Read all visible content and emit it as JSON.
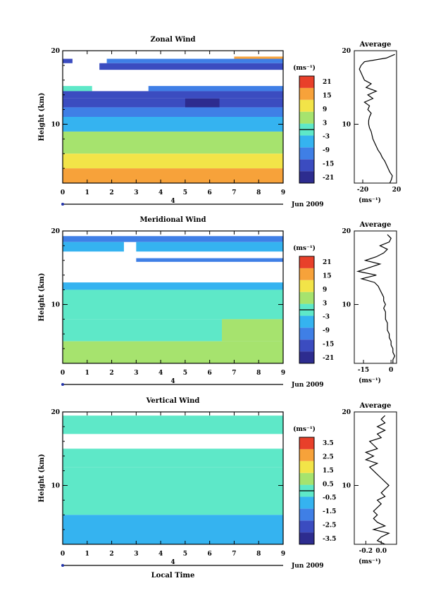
{
  "chart_data": [
    {
      "type": "heatmap",
      "title": "Zonal Wind",
      "ylabel": "Height (km)",
      "xlim": [
        0,
        9
      ],
      "ylim": [
        2,
        20
      ],
      "x_ticks": [
        "0",
        "1",
        "2",
        "3",
        "4",
        "5",
        "6",
        "7",
        "8",
        "9"
      ],
      "y_ticks": [
        {
          "v": 20,
          "t": "20"
        },
        {
          "v": 10,
          "t": "10"
        }
      ],
      "day_marker": "4",
      "date_label": "Jun 2009",
      "colorbar": {
        "unit": "(ms⁻¹)",
        "ticks": [
          "21",
          "15",
          "9",
          "3",
          "-3",
          "-9",
          "-15",
          "-21"
        ],
        "range": [
          -24,
          24
        ]
      },
      "profile": {
        "title": "Average",
        "xlabel": "(ms⁻¹)",
        "xlim": [
          -30,
          20
        ],
        "x_ticks": [
          {
            "v": -20,
            "t": "-20"
          },
          {
            "v": 20,
            "t": "20"
          }
        ],
        "y_ticks": [
          {
            "v": 20,
            "t": "20"
          },
          {
            "v": 10,
            "t": "10"
          }
        ],
        "h": [
          2,
          2.5,
          3,
          3.5,
          4,
          4.5,
          5,
          5.5,
          6,
          6.5,
          7,
          7.5,
          8,
          8.5,
          9,
          9.5,
          10,
          10.5,
          11,
          11.5,
          12,
          12.5,
          13,
          13.5,
          14,
          14.5,
          15,
          15.5,
          16,
          16.5,
          17,
          17.5,
          18,
          18.5,
          19,
          19.5
        ],
        "v": [
          12,
          14,
          15,
          12,
          10,
          8,
          6,
          3,
          1,
          -2,
          -4,
          -6,
          -8,
          -9,
          -10,
          -12,
          -13,
          -13,
          -12,
          -10,
          -14,
          -12,
          -18,
          -8,
          -14,
          -4,
          -16,
          -10,
          -18,
          -20,
          -22,
          -24,
          -22,
          -18,
          8,
          18
        ]
      },
      "grid": {
        "levels": [
          -24,
          -18,
          -12,
          -6,
          0,
          6,
          12,
          18,
          24
        ],
        "rows": [
          {
            "y": [
              18.9,
              19.2
            ],
            "v": [
              [
                7.0,
                9.0,
                18
              ]
            ]
          },
          {
            "y": [
              18.3,
              18.9
            ],
            "v": [
              [
                0,
                0.4,
                -18
              ],
              [
                1.8,
                9.0,
                -12
              ]
            ]
          },
          {
            "y": [
              17.4,
              18.3
            ],
            "v": [
              [
                1.5,
                9.0,
                -18
              ]
            ]
          },
          {
            "y": [
              14.5,
              15.2
            ],
            "v": [
              [
                0,
                1.2,
                0
              ],
              [
                3.5,
                9.0,
                -12
              ]
            ]
          },
          {
            "y": [
              13.5,
              14.5
            ],
            "v": [
              [
                0,
                9.0,
                -18
              ]
            ]
          },
          {
            "y": [
              12.3,
              13.5
            ],
            "v": [
              [
                0,
                9.0,
                -18
              ],
              [
                5.0,
                6.4,
                -24
              ]
            ]
          },
          {
            "y": [
              11.0,
              12.3
            ],
            "v": [
              [
                0,
                9.0,
                -12
              ]
            ]
          },
          {
            "y": [
              9.0,
              11.0
            ],
            "v": [
              [
                0,
                9.0,
                -6
              ]
            ]
          },
          {
            "y": [
              6.0,
              9.0
            ],
            "v": [
              [
                0,
                9.0,
                6
              ]
            ]
          },
          {
            "y": [
              4.0,
              6.0
            ],
            "v": [
              [
                0,
                9.0,
                12
              ]
            ]
          },
          {
            "y": [
              2.0,
              4.0
            ],
            "v": [
              [
                0,
                9.0,
                18
              ]
            ]
          }
        ]
      }
    },
    {
      "type": "heatmap",
      "title": "Meridional Wind",
      "ylabel": "Height (km)",
      "xlim": [
        0,
        9
      ],
      "ylim": [
        2,
        20
      ],
      "x_ticks": [
        "0",
        "1",
        "2",
        "3",
        "4",
        "5",
        "6",
        "7",
        "8",
        "9"
      ],
      "y_ticks": [
        {
          "v": 20,
          "t": "20"
        },
        {
          "v": 10,
          "t": "10"
        }
      ],
      "day_marker": "4",
      "date_label": "Jun 2009",
      "colorbar": {
        "unit": "(ms⁻¹)",
        "ticks": [
          "21",
          "15",
          "9",
          "3",
          "-3",
          "-9",
          "-15",
          "-21"
        ],
        "range": [
          -24,
          24
        ]
      },
      "profile": {
        "title": "Average",
        "xlabel": "(ms⁻¹)",
        "xlim": [
          -20,
          3
        ],
        "x_ticks": [
          {
            "v": -15,
            "t": "-15"
          },
          {
            "v": 0,
            "t": "0"
          }
        ],
        "y_ticks": [
          {
            "v": 20,
            "t": "20"
          },
          {
            "v": 10,
            "t": "10"
          }
        ],
        "h": [
          2,
          2.5,
          3,
          3.5,
          4,
          4.5,
          5,
          5.5,
          6,
          6.5,
          7,
          7.5,
          8,
          8.5,
          9,
          9.5,
          10,
          10.5,
          11,
          11.5,
          12,
          12.5,
          13,
          13.5,
          14,
          14.5,
          15,
          15.5,
          16,
          16.5,
          17,
          17.5,
          18,
          18.5,
          19,
          19.5
        ],
        "v": [
          1,
          1,
          2,
          1,
          1,
          0,
          0,
          -1,
          -1,
          -2,
          -2,
          -2,
          -3,
          -3,
          -3,
          -4,
          -3,
          -4,
          -4,
          -5,
          -6,
          -7,
          -9,
          -16,
          -8,
          -18,
          -12,
          -6,
          -14,
          -8,
          -4,
          -2,
          -6,
          -1,
          0,
          -2
        ]
      },
      "grid": {
        "levels": [
          -24,
          -18,
          -12,
          -6,
          0,
          6,
          12,
          18,
          24
        ],
        "rows": [
          {
            "y": [
              18.5,
              19.3
            ],
            "v": [
              [
                0,
                9.0,
                -12
              ]
            ]
          },
          {
            "y": [
              17.2,
              18.5
            ],
            "v": [
              [
                0,
                2.5,
                -6
              ],
              [
                3.0,
                9.0,
                -6
              ]
            ]
          },
          {
            "y": [
              15.8,
              16.3
            ],
            "v": [
              [
                3.0,
                9.0,
                -12
              ]
            ]
          },
          {
            "y": [
              12.0,
              13.0
            ],
            "v": [
              [
                0,
                9.0,
                -6
              ]
            ]
          },
          {
            "y": [
              8.0,
              12.0
            ],
            "v": [
              [
                0,
                9.0,
                0
              ]
            ]
          },
          {
            "y": [
              5.0,
              8.0
            ],
            "v": [
              [
                0,
                9.0,
                0
              ],
              [
                6.5,
                9.0,
                6
              ]
            ]
          },
          {
            "y": [
              2.0,
              5.0
            ],
            "v": [
              [
                0,
                9.0,
                6
              ]
            ]
          }
        ]
      }
    },
    {
      "type": "heatmap",
      "title": "Vertical Wind",
      "ylabel": "Height (km)",
      "xlabel": "Local Time",
      "xlim": [
        0,
        9
      ],
      "ylim": [
        2,
        20
      ],
      "x_ticks": [
        "0",
        "1",
        "2",
        "3",
        "4",
        "5",
        "6",
        "7",
        "8",
        "9"
      ],
      "y_ticks": [
        {
          "v": 20,
          "t": "20"
        },
        {
          "v": 10,
          "t": "10"
        }
      ],
      "day_marker": "4",
      "date_label": "Jun 2009",
      "colorbar": {
        "unit": "(ms⁻¹)",
        "ticks": [
          "3.5",
          "2.5",
          "1.5",
          "0.5",
          "-0.5",
          "-1.5",
          "-2.5",
          "-3.5"
        ],
        "range": [
          -4,
          4
        ]
      },
      "profile": {
        "title": "Average",
        "xlabel": "(ms⁻¹)",
        "xlim": [
          -0.35,
          0.2
        ],
        "x_ticks": [
          {
            "v": -0.2,
            "t": "-0.2"
          },
          {
            "v": 0,
            "t": "0.0"
          }
        ],
        "y_ticks": [
          {
            "v": 20,
            "t": "20"
          },
          {
            "v": 10,
            "t": "10"
          }
        ],
        "h": [
          2,
          2.5,
          3,
          3.5,
          4,
          4.5,
          5,
          5.5,
          6,
          6.5,
          7,
          7.5,
          8,
          8.5,
          9,
          9.5,
          10,
          10.5,
          11,
          11.5,
          12,
          12.5,
          13,
          13.5,
          14,
          14.5,
          15,
          15.5,
          16,
          16.5,
          17,
          17.5,
          18,
          18.5,
          19,
          19.5
        ],
        "v": [
          0.05,
          -0.05,
          0.0,
          0.1,
          -0.1,
          0.05,
          -0.05,
          -0.1,
          -0.05,
          -0.1,
          -0.05,
          0.0,
          -0.05,
          0.05,
          0.0,
          0.05,
          0.1,
          0.05,
          0.0,
          -0.05,
          -0.1,
          -0.15,
          -0.05,
          -0.2,
          -0.1,
          -0.2,
          -0.05,
          -0.1,
          -0.15,
          0.0,
          -0.05,
          0.05,
          -0.05,
          0.05,
          0.0,
          0.05
        ]
      },
      "grid": {
        "levels": [
          -4,
          -3,
          -2,
          -1,
          0,
          1,
          2,
          3,
          4
        ],
        "rows": [
          {
            "y": [
              17.0,
              19.5
            ],
            "v": [
              [
                0,
                9.0,
                0
              ]
            ]
          },
          {
            "y": [
              12.5,
              15.0
            ],
            "v": [
              [
                0,
                9.0,
                0
              ]
            ]
          },
          {
            "y": [
              6.0,
              12.5
            ],
            "v": [
              [
                0,
                9.0,
                0
              ]
            ]
          },
          {
            "y": [
              2.0,
              6.0
            ],
            "v": [
              [
                0,
                9.0,
                -1
              ]
            ]
          }
        ]
      }
    }
  ]
}
